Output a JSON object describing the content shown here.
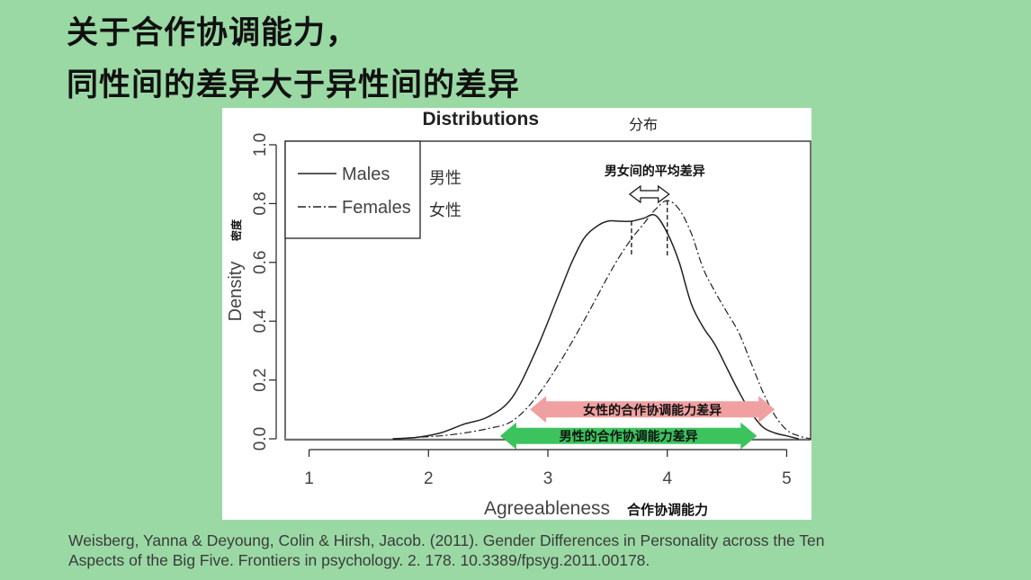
{
  "headline": {
    "line1": "关于合作协调能力，",
    "line2": "同性间的差异大于异性间的差异"
  },
  "citation": {
    "line1": "Weisberg, Yanna & Deyoung, Colin & Hirsh, Jacob. (2011). Gender Differences in Personality across the Ten",
    "line2": "Aspects of the Big Five. Frontiers in psychology. 2. 178. 10.3389/fpsyg.2011.00178."
  },
  "chart_data": {
    "type": "line",
    "title": "Distributions",
    "title_cn": "分布",
    "xlabel": "Agreeableness",
    "xlabel_cn": "合作协调能力",
    "ylabel": "Density",
    "ylabel_cn": "密度",
    "xlim": [
      0.8,
      5.2
    ],
    "ylim": [
      0,
      1.0
    ],
    "x_ticks": [
      "1",
      "2",
      "3",
      "4",
      "5"
    ],
    "y_ticks": [
      "0.0",
      "0.2",
      "0.4",
      "0.6",
      "0.8",
      "1.0"
    ],
    "grid": false,
    "legend_position": "top-left",
    "series": [
      {
        "name": "Males",
        "name_cn": "男性",
        "line_style": "solid",
        "x": [
          1.7,
          1.9,
          2.1,
          2.3,
          2.5,
          2.7,
          2.9,
          3.1,
          3.2,
          3.3,
          3.4,
          3.5,
          3.6,
          3.7,
          3.8,
          3.9,
          4.0,
          4.1,
          4.2,
          4.3,
          4.4,
          4.5,
          4.6,
          4.7,
          4.8,
          4.9,
          5.0,
          5.1
        ],
        "y": [
          0.0,
          0.005,
          0.02,
          0.05,
          0.075,
          0.14,
          0.3,
          0.5,
          0.6,
          0.68,
          0.72,
          0.74,
          0.74,
          0.74,
          0.75,
          0.76,
          0.7,
          0.6,
          0.46,
          0.38,
          0.32,
          0.24,
          0.16,
          0.09,
          0.04,
          0.02,
          0.01,
          0.0
        ]
      },
      {
        "name": "Females",
        "name_cn": "女性",
        "line_style": "dashdot",
        "x": [
          1.7,
          1.9,
          2.1,
          2.3,
          2.5,
          2.7,
          2.9,
          3.1,
          3.3,
          3.5,
          3.6,
          3.7,
          3.8,
          3.9,
          4.0,
          4.1,
          4.2,
          4.3,
          4.4,
          4.5,
          4.6,
          4.7,
          4.8,
          4.9,
          5.0,
          5.1,
          5.2
        ],
        "y": [
          0.0,
          0.005,
          0.01,
          0.02,
          0.035,
          0.06,
          0.14,
          0.26,
          0.4,
          0.55,
          0.62,
          0.68,
          0.73,
          0.78,
          0.81,
          0.78,
          0.7,
          0.58,
          0.5,
          0.43,
          0.36,
          0.26,
          0.16,
          0.08,
          0.03,
          0.01,
          0.0
        ]
      }
    ],
    "annotations": {
      "mean_diff": {
        "label": "男女间的平均差异",
        "x_from": 3.7,
        "x_to": 4.0,
        "color": "#111111"
      },
      "female_range": {
        "label": "女性的合作协调能力差异",
        "x_from": 2.85,
        "x_to": 4.9,
        "y": 0.1,
        "color": "#f0a0a0"
      },
      "male_range": {
        "label": "男性的合作协调能力差异",
        "x_from": 2.6,
        "x_to": 4.75,
        "y": 0.01,
        "color": "#3cc35e"
      }
    }
  }
}
